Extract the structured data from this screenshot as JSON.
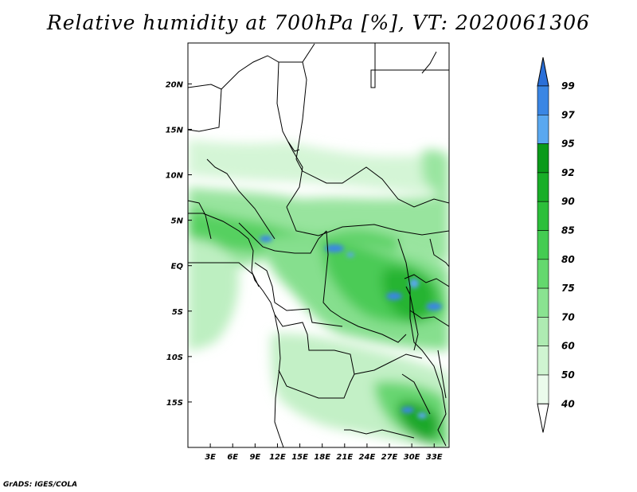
{
  "title": "Relative humidity at 700hPa [%], VT: 2020061306",
  "credit": "GrADS: IGES/COLA",
  "map": {
    "lon_range": [
      0,
      35
    ],
    "lat_range": [
      -20,
      24.5
    ],
    "x_ticks": [
      {
        "lon": 3,
        "label": "3E"
      },
      {
        "lon": 6,
        "label": "6E"
      },
      {
        "lon": 9,
        "label": "9E"
      },
      {
        "lon": 12,
        "label": "12E"
      },
      {
        "lon": 15,
        "label": "15E"
      },
      {
        "lon": 18,
        "label": "18E"
      },
      {
        "lon": 21,
        "label": "21E"
      },
      {
        "lon": 24,
        "label": "24E"
      },
      {
        "lon": 27,
        "label": "27E"
      },
      {
        "lon": 30,
        "label": "30E"
      },
      {
        "lon": 33,
        "label": "33E"
      }
    ],
    "y_ticks": [
      {
        "lat": 20,
        "label": "20N"
      },
      {
        "lat": 15,
        "label": "15N"
      },
      {
        "lat": 10,
        "label": "10N"
      },
      {
        "lat": 5,
        "label": "5N"
      },
      {
        "lat": 0,
        "label": "EQ"
      },
      {
        "lat": -5,
        "label": "5S"
      },
      {
        "lat": -10,
        "label": "10S"
      },
      {
        "lat": -15,
        "label": "15S"
      }
    ]
  },
  "colorbar": {
    "levels": [
      "99",
      "97",
      "95",
      "92",
      "90",
      "85",
      "80",
      "75",
      "70",
      "60",
      "50",
      "40"
    ],
    "colors": [
      "#2a6fd8",
      "#3a86e4",
      "#5aa8f0",
      "#0b9a1a",
      "#19ae28",
      "#2cbf3a",
      "#44cc52",
      "#64d86e",
      "#8ae391",
      "#aeebb2",
      "#cff4d1",
      "#ebfbec"
    ]
  },
  "chart_data": {
    "type": "heatmap",
    "title": "Relative humidity at 700hPa [%], VT: 2020061306",
    "x_range": [
      0,
      35
    ],
    "y_range": [
      -20,
      24.5
    ],
    "x_tick_labels": [
      "3E",
      "6E",
      "9E",
      "12E",
      "15E",
      "18E",
      "21E",
      "24E",
      "27E",
      "30E",
      "33E"
    ],
    "y_tick_labels": [
      "20N",
      "15N",
      "10N",
      "5N",
      "EQ",
      "5S",
      "10S",
      "15S"
    ],
    "colorbar_levels": [
      40,
      50,
      60,
      70,
      75,
      80,
      85,
      90,
      92,
      95,
      97,
      99
    ],
    "regions": [
      {
        "lon": [
          1,
          35
        ],
        "lat": [
          9,
          13
        ],
        "value": 60
      },
      {
        "lon": [
          0,
          35
        ],
        "lat": [
          2,
          9
        ],
        "value": 75
      },
      {
        "lon": [
          0,
          12
        ],
        "lat": [
          3,
          6
        ],
        "value": 90
      },
      {
        "lon": [
          10,
          27
        ],
        "lat": [
          2,
          6
        ],
        "value": 85
      },
      {
        "lon": [
          0,
          8
        ],
        "lat": [
          -10,
          2
        ],
        "value": 60
      },
      {
        "lon": [
          17,
          35
        ],
        "lat": [
          -9,
          4
        ],
        "value": 80
      },
      {
        "lon": [
          26,
          34
        ],
        "lat": [
          -6,
          2
        ],
        "value": 90
      },
      {
        "lon": [
          27,
          32
        ],
        "lat": [
          -4,
          -2
        ],
        "value": 97
      },
      {
        "lon": [
          12,
          35
        ],
        "lat": [
          -20,
          -9
        ],
        "value": 55
      },
      {
        "lon": [
          27,
          35
        ],
        "lat": [
          -20,
          -15
        ],
        "value": 85
      }
    ]
  }
}
